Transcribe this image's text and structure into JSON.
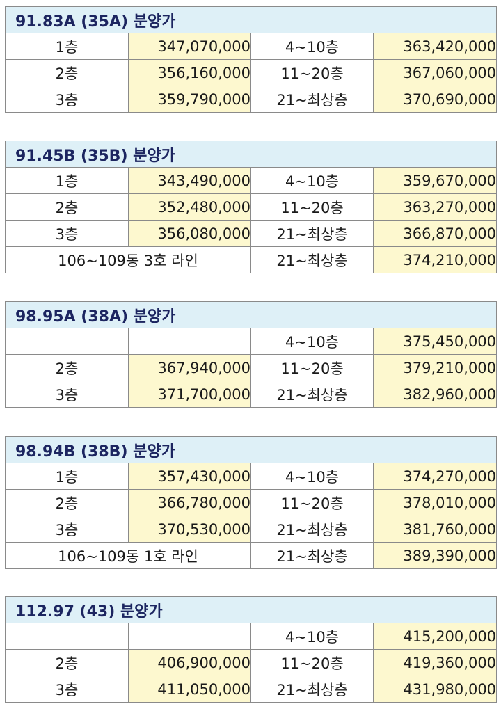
{
  "blocks": [
    {
      "title": "91.83A  (35A) 분양가",
      "rows": [
        {
          "floor": "1층",
          "price": "347,070,000",
          "range": "4~10층",
          "range_price": "363,420,000"
        },
        {
          "floor": "2층",
          "price": "356,160,000",
          "range": "11~20층",
          "range_price": "367,060,000"
        },
        {
          "floor": "3층",
          "price": "359,790,000",
          "range": "21~최상층",
          "range_price": "370,690,000"
        }
      ]
    },
    {
      "title": "91.45B  (35B) 분양가",
      "rows": [
        {
          "floor": "1층",
          "price": "343,490,000",
          "range": "4~10층",
          "range_price": "359,670,000"
        },
        {
          "floor": "2층",
          "price": "352,480,000",
          "range": "11~20층",
          "range_price": "363,270,000"
        },
        {
          "floor": "3층",
          "price": "356,080,000",
          "range": "21~최상층",
          "range_price": "366,870,000"
        }
      ],
      "line_row": {
        "label": "106~109동 3호 라인",
        "range": "21~최상층",
        "range_price": "374,210,000"
      }
    },
    {
      "title": "98.95A  (38A) 분양가",
      "rows": [
        {
          "range": "4~10층",
          "range_price": "375,450,000"
        },
        {
          "floor": "2층",
          "price": "367,940,000",
          "range": "11~20층",
          "range_price": "379,210,000"
        },
        {
          "floor": "3층",
          "price": "371,700,000",
          "range": "21~최상층",
          "range_price": "382,960,000"
        }
      ]
    },
    {
      "title": "98.94B  (38B) 분양가",
      "rows": [
        {
          "floor": "1층",
          "price": "357,430,000",
          "range": "4~10층",
          "range_price": "374,270,000"
        },
        {
          "floor": "2층",
          "price": "366,780,000",
          "range": "11~20층",
          "range_price": "378,010,000"
        },
        {
          "floor": "3층",
          "price": "370,530,000",
          "range": "21~최상층",
          "range_price": "381,760,000"
        }
      ],
      "line_row": {
        "label": "106~109동 1호 라인",
        "range": "21~최상층",
        "range_price": "389,390,000"
      }
    },
    {
      "title": "112.97  (43) 분양가",
      "rows": [
        {
          "range": "4~10층",
          "range_price": "415,200,000"
        },
        {
          "floor": "2층",
          "price": "406,900,000",
          "range": "11~20층",
          "range_price": "419,360,000"
        },
        {
          "floor": "3층",
          "price": "411,050,000",
          "range": "21~최상층",
          "range_price": "431,980,000"
        }
      ]
    }
  ]
}
